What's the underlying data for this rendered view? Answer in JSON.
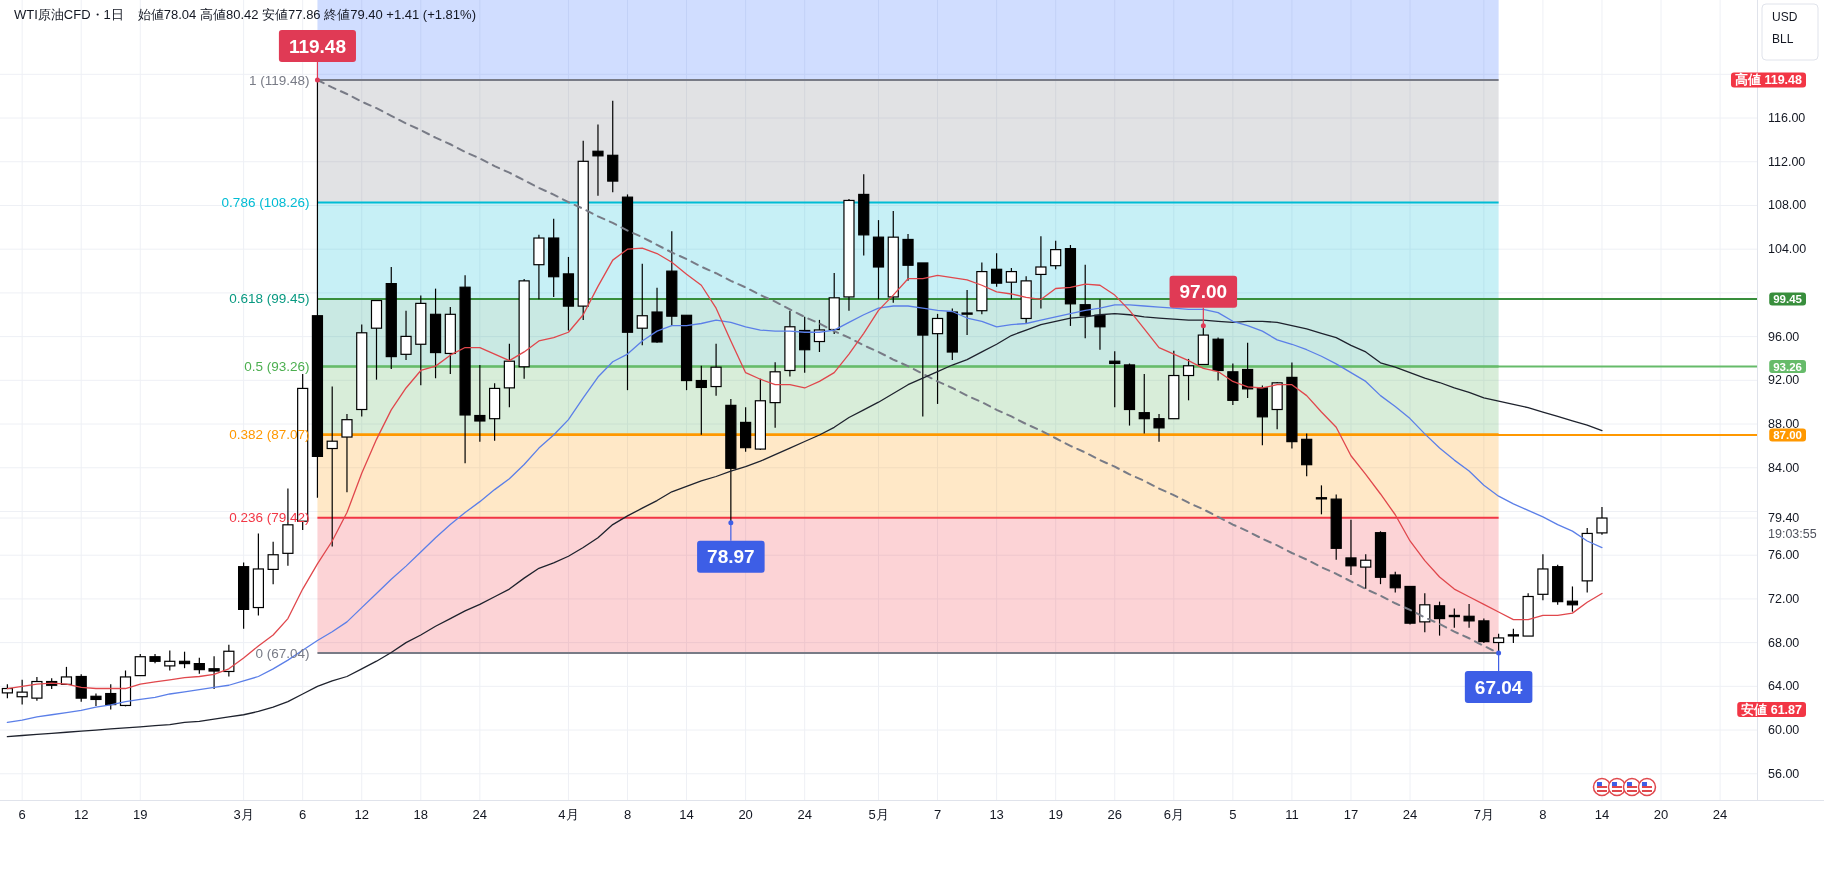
{
  "chart_data": {
    "type": "candlestick",
    "title": "WTI原油CFD・1日",
    "subtitle": "始値78.04 高値80.42 安値77.86 終値79.40 +1.41 (+1.81%)",
    "categories": [
      null,
      "6",
      null,
      null,
      null,
      "12",
      null,
      null,
      null,
      "19",
      null,
      null,
      null,
      null,
      null,
      null,
      "3月",
      null,
      null,
      null,
      "6",
      null,
      null,
      null,
      "12",
      null,
      null,
      null,
      "18",
      null,
      null,
      null,
      "24",
      null,
      null,
      null,
      null,
      null,
      "4月",
      null,
      null,
      null,
      "8",
      null,
      null,
      null,
      "14",
      null,
      null,
      null,
      "20",
      null,
      null,
      null,
      "24",
      null,
      null,
      null,
      null,
      "5月",
      null,
      null,
      null,
      "7",
      null,
      null,
      null,
      "13",
      null,
      null,
      null,
      "19",
      null,
      null,
      null,
      "26",
      null,
      null,
      null,
      "6月",
      null,
      null,
      null,
      "5",
      null,
      null,
      null,
      "11",
      null,
      null,
      null,
      "17",
      null,
      null,
      null,
      "24",
      null,
      null,
      null,
      null,
      "7月",
      null,
      null,
      null,
      "8",
      null,
      null,
      null,
      "14",
      null,
      null,
      null,
      "20",
      null,
      null,
      null,
      "24",
      null,
      null
    ],
    "ohlc": [
      [
        63.4,
        64.2,
        62.9,
        63.8
      ],
      [
        63.05,
        64.6,
        62.33,
        63.47
      ],
      [
        62.92,
        64.86,
        62.67,
        64.44
      ],
      [
        64.44,
        64.73,
        63.76,
        64.1
      ],
      [
        64.18,
        65.78,
        64.18,
        64.86
      ],
      [
        64.9,
        65.11,
        62.59,
        62.92
      ],
      [
        63.09,
        63.34,
        62.21,
        62.8
      ],
      [
        63.34,
        64.18,
        61.87,
        62.33
      ],
      [
        62.25,
        65.45,
        62.17,
        64.86
      ],
      [
        64.98,
        66.96,
        64.94,
        66.71
      ],
      [
        66.71,
        66.96,
        66.12,
        66.29
      ],
      [
        65.87,
        67.29,
        65.45,
        66.29
      ],
      [
        66.29,
        67.17,
        65.66,
        66.08
      ],
      [
        66.08,
        66.62,
        65.15,
        65.53
      ],
      [
        65.61,
        66.75,
        63.76,
        65.4
      ],
      [
        65.36,
        67.8,
        64.9,
        67.21
      ],
      [
        74.95,
        75.33,
        69.27,
        71.04
      ],
      [
        71.21,
        77.98,
        70.49,
        74.74
      ],
      [
        74.7,
        77.22,
        73.35,
        76.04
      ],
      [
        76.17,
        82.1,
        75.03,
        78.78
      ],
      [
        79.11,
        92.57,
        78.31,
        91.26
      ],
      [
        97.91,
        119.48,
        81.26,
        85.04
      ],
      [
        85.76,
        91.43,
        76.8,
        86.43
      ],
      [
        86.81,
        88.91,
        81.76,
        88.4
      ],
      [
        89.33,
        97.11,
        88.7,
        96.35
      ],
      [
        96.77,
        99.3,
        92.06,
        99.3
      ],
      [
        100.85,
        102.37,
        93.03,
        94.17
      ],
      [
        94.38,
        98.37,
        93.87,
        96.02
      ],
      [
        95.3,
        99.76,
        91.56,
        99.04
      ],
      [
        98.04,
        100.39,
        92.19,
        94.54
      ],
      [
        94.46,
        98.71,
        92.57,
        98.04
      ],
      [
        100.52,
        101.61,
        84.41,
        88.83
      ],
      [
        88.78,
        93.41,
        86.39,
        88.28
      ],
      [
        88.49,
        91.73,
        86.47,
        91.26
      ],
      [
        91.31,
        95.34,
        89.54,
        93.75
      ],
      [
        93.24,
        101.27,
        92.15,
        101.1
      ],
      [
        102.58,
        105.31,
        99.42,
        105.02
      ],
      [
        105.02,
        106.78,
        99.63,
        101.48
      ],
      [
        101.74,
        103.29,
        96.56,
        98.79
      ],
      [
        98.79,
        113.93,
        97.53,
        112.04
      ],
      [
        112.96,
        115.4,
        108.88,
        112.54
      ],
      [
        112.59,
        117.59,
        109.22,
        110.23
      ],
      [
        108.76,
        109.01,
        91.1,
        96.4
      ],
      [
        96.77,
        102.66,
        95.22,
        97.91
      ],
      [
        98.25,
        100.47,
        95.43,
        95.51
      ],
      [
        101.99,
        105.65,
        96.98,
        97.87
      ],
      [
        97.95,
        97.95,
        91.1,
        91.98
      ],
      [
        91.98,
        93.33,
        87.02,
        91.35
      ],
      [
        91.43,
        95.34,
        90.59,
        93.2
      ],
      [
        89.71,
        90.3,
        78.97,
        83.95
      ],
      [
        88.15,
        89.54,
        85.46,
        85.84
      ],
      [
        85.71,
        92.15,
        85.63,
        90.13
      ],
      [
        89.96,
        93.66,
        87.65,
        92.78
      ],
      [
        92.9,
        98.37,
        92.36,
        96.9
      ],
      [
        96.56,
        97.82,
        92.69,
        94.8
      ],
      [
        95.55,
        97.53,
        94.59,
        96.61
      ],
      [
        96.65,
        101.82,
        96.23,
        99.55
      ],
      [
        99.63,
        108.59,
        98.37,
        108.46
      ],
      [
        109.01,
        110.86,
        103.42,
        105.31
      ],
      [
        105.1,
        106.66,
        99.42,
        102.37
      ],
      [
        99.63,
        107.5,
        99.09,
        105.1
      ],
      [
        104.89,
        105.39,
        101.1,
        102.53
      ],
      [
        102.74,
        102.74,
        88.7,
        96.14
      ],
      [
        96.27,
        98.08,
        89.84,
        97.66
      ],
      [
        98.25,
        98.58,
        93.87,
        94.59
      ],
      [
        98.1,
        100.26,
        96.14,
        98.16
      ],
      [
        98.37,
        102.79,
        98.04,
        101.95
      ],
      [
        102.16,
        103.63,
        100.56,
        100.89
      ],
      [
        100.98,
        102.28,
        99.42,
        101.95
      ],
      [
        97.66,
        101.53,
        97.24,
        101.1
      ],
      [
        101.69,
        105.18,
        98.58,
        102.37
      ],
      [
        102.49,
        104.76,
        102.16,
        103.96
      ],
      [
        104.05,
        104.38,
        96.98,
        99.0
      ],
      [
        98.92,
        102.58,
        95.85,
        97.91
      ],
      [
        97.95,
        99.42,
        94.8,
        96.9
      ],
      [
        93.75,
        94.67,
        89.54,
        93.54
      ],
      [
        93.41,
        93.54,
        87.86,
        89.33
      ],
      [
        89.04,
        92.57,
        87.14,
        88.49
      ],
      [
        88.49,
        88.91,
        86.39,
        87.65
      ],
      [
        88.49,
        94.71,
        88.49,
        92.44
      ],
      [
        92.44,
        93.96,
        90.17,
        93.33
      ],
      [
        93.45,
        97.0,
        93.45,
        96.14
      ],
      [
        95.76,
        95.93,
        91.98,
        92.9
      ],
      [
        92.78,
        93.54,
        89.75,
        90.17
      ],
      [
        92.99,
        95.43,
        90.38,
        91.22
      ],
      [
        91.31,
        91.52,
        86.05,
        88.66
      ],
      [
        89.33,
        91.85,
        87.52,
        91.77
      ],
      [
        92.27,
        93.62,
        85.76,
        86.39
      ],
      [
        86.6,
        87.14,
        83.23,
        84.28
      ],
      [
        81.26,
        82.39,
        79.74,
        81.22
      ],
      [
        81.13,
        81.55,
        75.58,
        76.63
      ],
      [
        75.75,
        79.24,
        74.19,
        75.03
      ],
      [
        74.91,
        76.08,
        72.93,
        75.54
      ],
      [
        78.06,
        78.19,
        73.35,
        73.98
      ],
      [
        74.19,
        74.49,
        72.59,
        73.02
      ],
      [
        73.14,
        73.14,
        69.65,
        69.78
      ],
      [
        69.9,
        72.51,
        68.94,
        71.46
      ],
      [
        71.37,
        71.75,
        68.64,
        70.2
      ],
      [
        70.45,
        71.12,
        69.36,
        70.49
      ],
      [
        70.41,
        71.54,
        69.36,
        69.99
      ],
      [
        69.99,
        70.2,
        67.97,
        68.09
      ],
      [
        68.01,
        68.81,
        67.04,
        68.43
      ],
      [
        68.68,
        69.27,
        67.97,
        68.72
      ],
      [
        68.6,
        72.51,
        68.6,
        72.22
      ],
      [
        72.42,
        76.08,
        71.88,
        74.74
      ],
      [
        74.95,
        75.12,
        71.46,
        71.75
      ],
      [
        71.79,
        73.14,
        70.83,
        71.46
      ],
      [
        73.65,
        78.48,
        72.59,
        77.99
      ],
      [
        78.04,
        80.42,
        77.86,
        79.4
      ],
      null,
      null,
      null,
      null,
      null,
      null,
      null,
      null,
      null,
      null
    ],
    "value_labels": [
      null,
      null,
      null,
      null,
      null,
      null,
      null,
      null,
      null,
      null,
      null,
      null,
      null,
      null,
      null,
      null,
      null,
      null,
      null,
      null,
      null,
      "119.48",
      null,
      null,
      null,
      null,
      null,
      null,
      null,
      null,
      null,
      null,
      null,
      null,
      null,
      null,
      null,
      null,
      null,
      null,
      null,
      null,
      null,
      null,
      null,
      null,
      null,
      null,
      null,
      "78.97",
      null,
      null,
      null,
      null,
      null,
      null,
      null,
      null,
      null,
      null,
      null,
      null,
      null,
      null,
      null,
      null,
      null,
      null,
      null,
      null,
      null,
      null,
      null,
      null,
      null,
      null,
      null,
      null,
      null,
      null,
      null,
      "97.00",
      null,
      null,
      null,
      null,
      null,
      null,
      null,
      null,
      null,
      null,
      null,
      null,
      null,
      null,
      null,
      null,
      null,
      null,
      null,
      "67.04",
      null,
      null,
      null,
      null,
      null,
      null,
      null,
      null,
      null,
      null,
      null,
      null,
      null,
      null,
      null,
      null,
      null
    ],
    "series": [
      {
        "type": "line",
        "color": "#787b86",
        "line_style": "dashed",
        "values": [
          null,
          null,
          null,
          null,
          null,
          null,
          null,
          null,
          null,
          null,
          null,
          null,
          null,
          null,
          null,
          null,
          null,
          null,
          null,
          null,
          null,
          119.48,
          118.8,
          118.2,
          117.5,
          116.9,
          116.2,
          115.5,
          114.9,
          114.2,
          113.6,
          112.9,
          112.3,
          111.6,
          111.0,
          110.3,
          109.6,
          109.0,
          108.3,
          107.7,
          107.0,
          106.4,
          105.7,
          105.1,
          104.4,
          103.7,
          103.1,
          102.4,
          101.8,
          101.1,
          100.5,
          99.8,
          99.2,
          98.5,
          97.8,
          97.2,
          96.5,
          95.9,
          95.2,
          94.6,
          93.9,
          93.3,
          92.6,
          91.9,
          91.3,
          90.6,
          90.0,
          89.3,
          88.7,
          88.0,
          87.4,
          86.7,
          86.0,
          85.4,
          84.7,
          84.1,
          83.4,
          82.8,
          82.1,
          81.5,
          80.8,
          80.2,
          79.5,
          78.8,
          78.2,
          77.5,
          76.9,
          76.2,
          75.6,
          74.9,
          74.3,
          73.6,
          72.9,
          72.3,
          71.6,
          71.0,
          70.3,
          69.7,
          69.0,
          68.4,
          67.7,
          67.04,
          null,
          null,
          null,
          null,
          null,
          null,
          null,
          null,
          null,
          null,
          null,
          null,
          null,
          null,
          null,
          null,
          null
        ]
      },
      {
        "type": "line",
        "color": "#1e222d",
        "values": [
          59.4,
          59.5,
          59.6,
          59.7,
          59.8,
          59.9,
          60.0,
          60.1,
          60.2,
          60.3,
          60.4,
          60.5,
          60.7,
          60.8,
          61.0,
          61.2,
          61.4,
          61.7,
          62.1,
          62.6,
          63.3,
          64.0,
          64.5,
          64.9,
          65.6,
          66.3,
          67.1,
          68.0,
          68.7,
          69.5,
          70.2,
          70.9,
          71.5,
          72.2,
          72.9,
          73.9,
          74.8,
          75.3,
          75.9,
          76.7,
          77.6,
          78.8,
          79.6,
          80.3,
          81.0,
          81.8,
          82.3,
          82.8,
          83.2,
          83.7,
          84.1,
          84.6,
          85.2,
          85.8,
          86.4,
          87.0,
          87.7,
          88.6,
          89.3,
          90.0,
          90.8,
          91.6,
          92.2,
          92.8,
          93.4,
          93.9,
          94.6,
          95.3,
          96.1,
          96.6,
          97.1,
          97.4,
          97.7,
          97.8,
          98.0,
          98.1,
          98.0,
          97.8,
          97.7,
          97.6,
          97.5,
          97.5,
          97.4,
          97.3,
          97.4,
          97.4,
          97.3,
          97.0,
          96.7,
          96.3,
          95.9,
          95.2,
          94.6,
          93.6,
          93.2,
          92.7,
          92.2,
          91.8,
          91.3,
          90.9,
          90.4,
          90.1,
          89.8,
          89.5,
          89.1,
          88.7,
          88.3,
          87.9,
          87.4,
          null,
          null,
          null,
          null,
          null,
          null,
          null,
          null,
          null,
          null
        ]
      },
      {
        "type": "line",
        "color": "#5b7fe8",
        "values": [
          60.7,
          60.9,
          61.2,
          61.4,
          61.6,
          61.8,
          62.1,
          62.3,
          62.6,
          62.8,
          63.0,
          63.3,
          63.5,
          63.7,
          63.9,
          64.1,
          64.5,
          64.9,
          65.6,
          66.4,
          67.3,
          68.2,
          69.0,
          69.9,
          71.2,
          72.5,
          73.8,
          75.0,
          76.3,
          77.6,
          78.8,
          79.9,
          80.9,
          82.0,
          83.0,
          84.3,
          85.8,
          87.0,
          88.4,
          90.4,
          92.3,
          93.7,
          94.4,
          95.6,
          96.5,
          97.0,
          97.0,
          97.2,
          97.5,
          97.3,
          96.9,
          96.6,
          96.5,
          96.5,
          96.4,
          96.4,
          96.6,
          97.3,
          98.0,
          98.6,
          98.8,
          98.8,
          98.6,
          98.4,
          98.3,
          97.7,
          97.4,
          96.9,
          97.1,
          97.2,
          97.5,
          97.8,
          98.1,
          98.4,
          98.6,
          98.9,
          98.9,
          98.8,
          98.7,
          98.6,
          98.5,
          98.5,
          98.2,
          97.4,
          97.0,
          96.5,
          95.7,
          95.3,
          94.8,
          94.2,
          93.5,
          92.7,
          91.9,
          90.6,
          89.6,
          88.5,
          87.1,
          85.8,
          84.7,
          83.7,
          82.4,
          81.4,
          80.7,
          80.1,
          79.5,
          78.8,
          78.2,
          77.3,
          76.7,
          null,
          null,
          null,
          null,
          null,
          null,
          null,
          null,
          null,
          null
        ]
      },
      {
        "type": "line",
        "color": "#e0474c",
        "values": [
          63.8,
          64.0,
          64.2,
          64.3,
          64.2,
          63.9,
          63.8,
          63.8,
          63.8,
          64.2,
          64.4,
          64.6,
          64.8,
          64.9,
          65.1,
          65.6,
          66.6,
          67.7,
          68.7,
          70.2,
          72.9,
          75.2,
          77.3,
          79.9,
          83.5,
          86.6,
          89.3,
          91.3,
          92.9,
          93.3,
          94.3,
          95.0,
          95.0,
          94.4,
          93.8,
          94.6,
          95.6,
          95.9,
          96.4,
          98.0,
          100.6,
          103.0,
          104.0,
          104.1,
          103.6,
          102.8,
          101.7,
          100.7,
          98.6,
          95.6,
          92.7,
          92.1,
          91.6,
          91.6,
          91.3,
          91.9,
          92.7,
          94.4,
          96.3,
          98.4,
          99.8,
          101.3,
          101.3,
          101.6,
          101.4,
          101.2,
          100.7,
          100.1,
          99.9,
          99.6,
          99.4,
          100.4,
          100.5,
          100.8,
          100.7,
          99.8,
          98.4,
          96.7,
          95.0,
          94.4,
          93.8,
          93.1,
          92.8,
          91.9,
          91.4,
          91.3,
          91.6,
          91.6,
          90.6,
          89.1,
          87.7,
          85.1,
          83.4,
          81.6,
          79.7,
          77.3,
          75.5,
          74.0,
          72.9,
          72.2,
          71.5,
          70.8,
          70.1,
          70.1,
          70.5,
          70.5,
          70.7,
          71.7,
          72.5,
          null,
          null,
          null,
          null,
          null,
          null,
          null,
          null,
          null,
          null
        ]
      }
    ],
    "ylim": [
      53.6,
      126.8
    ],
    "yticks": [
      {
        "value": 56,
        "label": "56.00"
      },
      {
        "value": 60,
        "label": "60.00"
      },
      {
        "value": 64,
        "label": "64.00"
      },
      {
        "value": 68,
        "label": "68.00"
      },
      {
        "value": 72,
        "label": "72.00"
      },
      {
        "value": 76,
        "label": "76.00"
      },
      {
        "value": 79.4,
        "label": "79.40"
      },
      {
        "value": 80,
        "label": null
      },
      {
        "value": 84,
        "label": "84.00"
      },
      {
        "value": 88,
        "label": "88.00"
      },
      {
        "value": 92,
        "label": "92.00"
      },
      {
        "value": 96,
        "label": "96.00"
      },
      {
        "value": 100,
        "label": null
      },
      {
        "value": 104,
        "label": "104.00"
      },
      {
        "value": 108,
        "label": "108.00"
      },
      {
        "value": 112,
        "label": "112.00"
      },
      {
        "value": 116,
        "label": "116.00"
      },
      {
        "value": 120,
        "label": null
      }
    ],
    "grid": true,
    "bands": [
      {
        "axis": "y",
        "from": 119.48,
        "to": 126.8,
        "color": "#2962ff"
      },
      {
        "axis": "y",
        "from": 108.26,
        "to": 119.48,
        "color": "#787b86",
        "label": "1 (119.48)"
      },
      {
        "axis": "y",
        "from": 99.45,
        "to": 108.26,
        "color": "#00bcd4",
        "label": "0.786 (108.26)"
      },
      {
        "axis": "y",
        "from": 93.26,
        "to": 99.45,
        "color": "#089981",
        "label": "0.618 (99.45)"
      },
      {
        "axis": "y",
        "from": 87.07,
        "to": 93.26,
        "color": "#4caf50",
        "label": "0.5 (93.26)"
      },
      {
        "axis": "y",
        "from": 79.42,
        "to": 87.07,
        "color": "#ff9800",
        "label": "0.382 (87.07)"
      },
      {
        "axis": "y",
        "from": 67.04,
        "to": 79.42,
        "color": "#f23645",
        "label": "0.236 (79.42)"
      }
    ],
    "ref_lines": [
      {
        "axis": "y",
        "value": 99.45,
        "label": "99.45",
        "color": "#388e3c"
      },
      {
        "axis": "y",
        "value": 93.26,
        "label": "93.26",
        "color": "#66bb6a"
      },
      {
        "axis": "y",
        "value": 87.0,
        "label": "87.00",
        "color": "#ff9800"
      }
    ],
    "annotations": [
      "USD",
      "BLL",
      "0 (67.04)",
      "高値 119.48",
      "安値 61.87",
      "19:03:55"
    ]
  }
}
